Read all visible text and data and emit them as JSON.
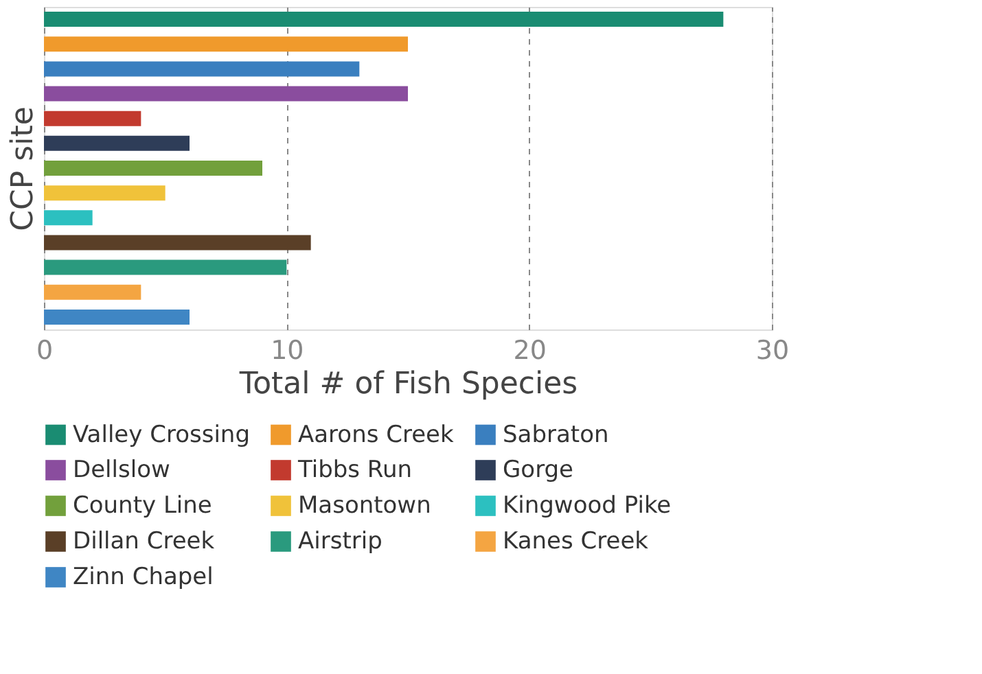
{
  "chart_data": {
    "type": "bar",
    "orientation": "horizontal",
    "categories": [
      null,
      null,
      null,
      null,
      null,
      null,
      null,
      null,
      null,
      null,
      null,
      null,
      null
    ],
    "series": [
      {
        "name": "Valley Crossing",
        "color": "#1a8c72",
        "values": [
          28,
          null,
          null,
          null,
          null,
          null,
          null,
          null,
          null,
          null,
          null,
          null,
          null
        ]
      },
      {
        "name": "Aarons Creek",
        "color": "#f09a2c",
        "values": [
          null,
          15,
          null,
          null,
          null,
          null,
          null,
          null,
          null,
          null,
          null,
          null,
          null
        ]
      },
      {
        "name": "Sabraton",
        "color": "#3a7fbf",
        "values": [
          null,
          null,
          13,
          null,
          null,
          null,
          null,
          null,
          null,
          null,
          null,
          null,
          null
        ]
      },
      {
        "name": "Dellslow",
        "color": "#8a4d9e",
        "values": [
          null,
          null,
          null,
          15,
          null,
          null,
          null,
          null,
          null,
          null,
          null,
          null,
          null
        ]
      },
      {
        "name": "Tibbs Run",
        "color": "#c23a2e",
        "values": [
          null,
          null,
          null,
          null,
          4,
          null,
          null,
          null,
          null,
          null,
          null,
          null,
          null
        ]
      },
      {
        "name": "Gorge",
        "color": "#2e3d58",
        "values": [
          null,
          null,
          null,
          null,
          null,
          6,
          null,
          null,
          null,
          null,
          null,
          null,
          null
        ]
      },
      {
        "name": "County Line",
        "color": "#72a03c",
        "values": [
          null,
          null,
          null,
          null,
          null,
          null,
          9,
          null,
          null,
          null,
          null,
          null,
          null
        ]
      },
      {
        "name": "Masontown",
        "color": "#f0c23a",
        "values": [
          null,
          null,
          null,
          null,
          null,
          null,
          null,
          5,
          null,
          null,
          null,
          null,
          null
        ]
      },
      {
        "name": "Kingwood Pike",
        "color": "#2cc0c0",
        "values": [
          null,
          null,
          null,
          null,
          null,
          null,
          null,
          null,
          2,
          null,
          null,
          null,
          null
        ]
      },
      {
        "name": "Dillan Creek",
        "color": "#5a3f27",
        "values": [
          null,
          null,
          null,
          null,
          null,
          null,
          null,
          null,
          null,
          11,
          null,
          null,
          null
        ]
      },
      {
        "name": "Airstrip",
        "color": "#2a9a7e",
        "values": [
          null,
          null,
          null,
          null,
          null,
          null,
          null,
          null,
          null,
          null,
          10,
          null,
          null
        ]
      },
      {
        "name": "Kanes Creek",
        "color": "#f4a542",
        "values": [
          null,
          null,
          null,
          null,
          null,
          null,
          null,
          null,
          null,
          null,
          null,
          4,
          null
        ]
      },
      {
        "name": "Zinn Chapel",
        "color": "#3f86c4",
        "values": [
          null,
          null,
          null,
          null,
          null,
          null,
          null,
          null,
          null,
          null,
          null,
          null,
          6
        ]
      }
    ],
    "xlabel": "Total # of Fish Species",
    "ylabel": "CCP site",
    "xlim": [
      0,
      30
    ],
    "xticks": [
      0,
      10,
      20,
      30
    ],
    "grid": "x",
    "legend": "bottom",
    "tick_labels": "x"
  }
}
